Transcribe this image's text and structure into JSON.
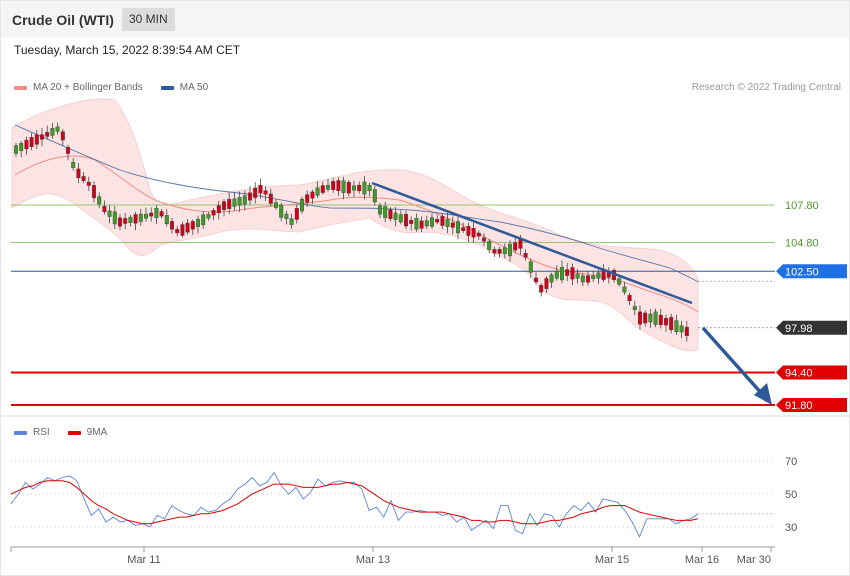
{
  "header": {
    "title": "Crude Oil (WTI)",
    "interval": "30 MIN",
    "timestamp": "Tuesday, March 15, 2022 8:39:54 AM CET"
  },
  "legend_main": [
    {
      "label": "MA 20 + Bollinger Bands",
      "color": "#f28b82"
    },
    {
      "label": "MA 50",
      "color": "#2d5a9a"
    }
  ],
  "legend_rsi": [
    {
      "label": "RSI",
      "color": "#5b84d6"
    },
    {
      "label": "9MA",
      "color": "#e00000"
    }
  ],
  "credit": "Research © 2022 Trading Central",
  "chart_data": {
    "type": "line",
    "price_axis": {
      "levels": [
        {
          "value": 107.8,
          "label": "107.80",
          "color": "#7bbd54",
          "kind": "resistance"
        },
        {
          "value": 104.8,
          "label": "104.80",
          "color": "#7bbd54",
          "kind": "resistance"
        },
        {
          "value": 102.5,
          "label": "102.50",
          "color": "#2d5a9a",
          "kind": "pivot"
        },
        {
          "value": 97.98,
          "label": "97.98",
          "color": "#333333",
          "kind": "last"
        },
        {
          "value": 94.4,
          "label": "94.40",
          "color": "#e00000",
          "kind": "support"
        },
        {
          "value": 91.8,
          "label": "91.80",
          "color": "#e00000",
          "kind": "support"
        }
      ]
    },
    "x_ticks": [
      "Mar 11",
      "Mar 13",
      "Mar 15",
      "Mar 16",
      "Mar 30"
    ],
    "rsi_ticks": [
      70,
      50,
      30
    ],
    "series": [
      {
        "name": "RSI",
        "values": [
          44,
          50,
          57,
          53,
          56,
          60,
          58,
          60,
          61,
          58,
          47,
          37,
          41,
          33,
          36,
          33,
          34,
          31,
          32,
          30,
          37,
          35,
          43,
          40,
          38,
          37,
          42,
          39,
          40,
          44,
          47,
          53,
          56,
          60,
          55,
          57,
          63,
          55,
          50,
          54,
          47,
          51,
          59,
          55,
          57,
          58,
          57,
          57,
          53,
          40,
          42,
          36,
          46,
          34,
          39,
          39,
          40,
          39,
          39,
          37,
          38,
          33,
          36,
          28,
          31,
          34,
          29,
          43,
          43,
          28,
          26,
          38,
          31,
          38,
          37,
          30,
          38,
          43,
          40,
          45,
          39,
          47,
          46,
          45,
          40,
          33,
          24,
          35,
          35,
          35,
          35,
          32,
          34,
          35,
          38
        ]
      },
      {
        "name": "9MA",
        "values": [
          50,
          52,
          54,
          55,
          57,
          58,
          58,
          58,
          57,
          54,
          50,
          46,
          43,
          41,
          38,
          36,
          34,
          33,
          32,
          32,
          33,
          34,
          35,
          36,
          36,
          37,
          38,
          38,
          39,
          40,
          42,
          44,
          47,
          50,
          52,
          54,
          56,
          56,
          56,
          55,
          54,
          54,
          54,
          55,
          56,
          56,
          57,
          56,
          55,
          52,
          49,
          46,
          44,
          42,
          41,
          40,
          39,
          39,
          39,
          39,
          38,
          37,
          36,
          34,
          34,
          33,
          33,
          34,
          34,
          33,
          32,
          32,
          32,
          33,
          34,
          34,
          35,
          36,
          38,
          39,
          40,
          42,
          43,
          43,
          43,
          41,
          39,
          38,
          37,
          36,
          35,
          34,
          34,
          34,
          35
        ]
      }
    ]
  },
  "annotations": {
    "trendline": "downtrend resistance",
    "arrow": "expected move toward 91.80"
  }
}
